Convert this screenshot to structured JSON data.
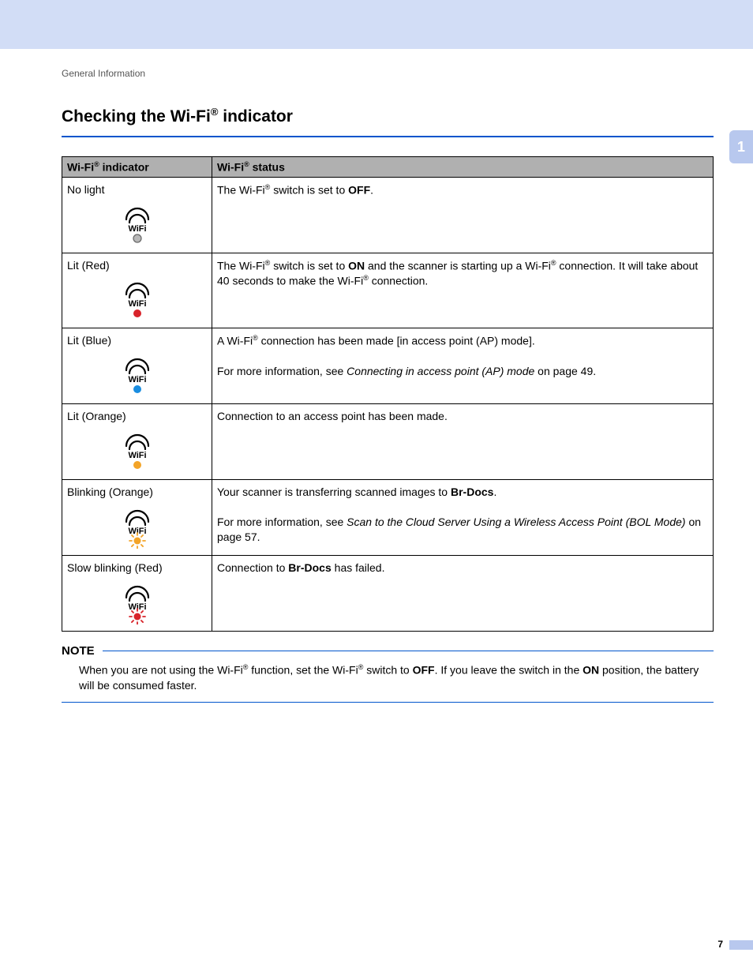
{
  "breadcrumb": "General Information",
  "title_pre": "Checking the Wi-Fi",
  "title_sup": "®",
  "title_post": " indicator",
  "side_tab": "1",
  "page_number": "7",
  "colors": {
    "header_bar": "#d2ddf6",
    "rule_blue": "#0055cc",
    "side_tab_bg": "#b8c8ee",
    "table_header_bg": "#b0b0b0",
    "icon_off_fill": "#b8b8b8",
    "icon_off_stroke": "#666666",
    "icon_red": "#d8232a",
    "icon_blue": "#1a8de0",
    "icon_orange": "#f3a428",
    "icon_orange_rays": "#f3a428",
    "icon_red_rays": "#d8232a"
  },
  "table": {
    "header_col1_pre": "Wi-Fi",
    "header_col1_sup": "®",
    "header_col1_post": " indicator",
    "header_col2_pre": "Wi-Fi",
    "header_col2_sup": "®",
    "header_col2_post": " status",
    "rows": [
      {
        "label": "No light",
        "icon": "off",
        "status_html": "The Wi-Fi<sup>®</sup> switch is set to <span class='bold'>OFF</span>."
      },
      {
        "label": "Lit (Red)",
        "icon": "red",
        "status_html": "The Wi-Fi<sup>®</sup> switch is set to <span class='bold'>ON</span> and the scanner is starting up a Wi-Fi<sup>®</sup> connection. It will take about 40 seconds to make the Wi-Fi<sup>®</sup> connection."
      },
      {
        "label": "Lit (Blue)",
        "icon": "blue",
        "status_html": "A Wi-Fi<sup>®</sup> connection has been made [in access point (AP) mode].<br><br>For more information, see <span class='italic'>Connecting in access point (AP) mode</span> on page 49."
      },
      {
        "label": "Lit (Orange)",
        "icon": "orange",
        "status_html": "Connection to an access point has been made."
      },
      {
        "label": "Blinking (Orange)",
        "icon": "orange_blink",
        "status_html": "Your scanner is transferring scanned images to <span class='bold'>Br-Docs</span>.<br><br>For more information, see <span class='italic'>Scan to the Cloud Server Using a Wireless Access Point (BOL Mode)</span> on page 57."
      },
      {
        "label": "Slow blinking (Red)",
        "icon": "red_blink",
        "status_html": "Connection to <span class='bold'>Br-Docs</span> has failed."
      }
    ]
  },
  "note": {
    "label": "NOTE",
    "body_html": "When you are not using the Wi-Fi<sup>®</sup> function, set the Wi-Fi<sup>®</sup> switch to <span class='bold'>OFF</span>. If you leave the switch in the <span class='bold'>ON</span> position, the battery will be consumed faster."
  }
}
